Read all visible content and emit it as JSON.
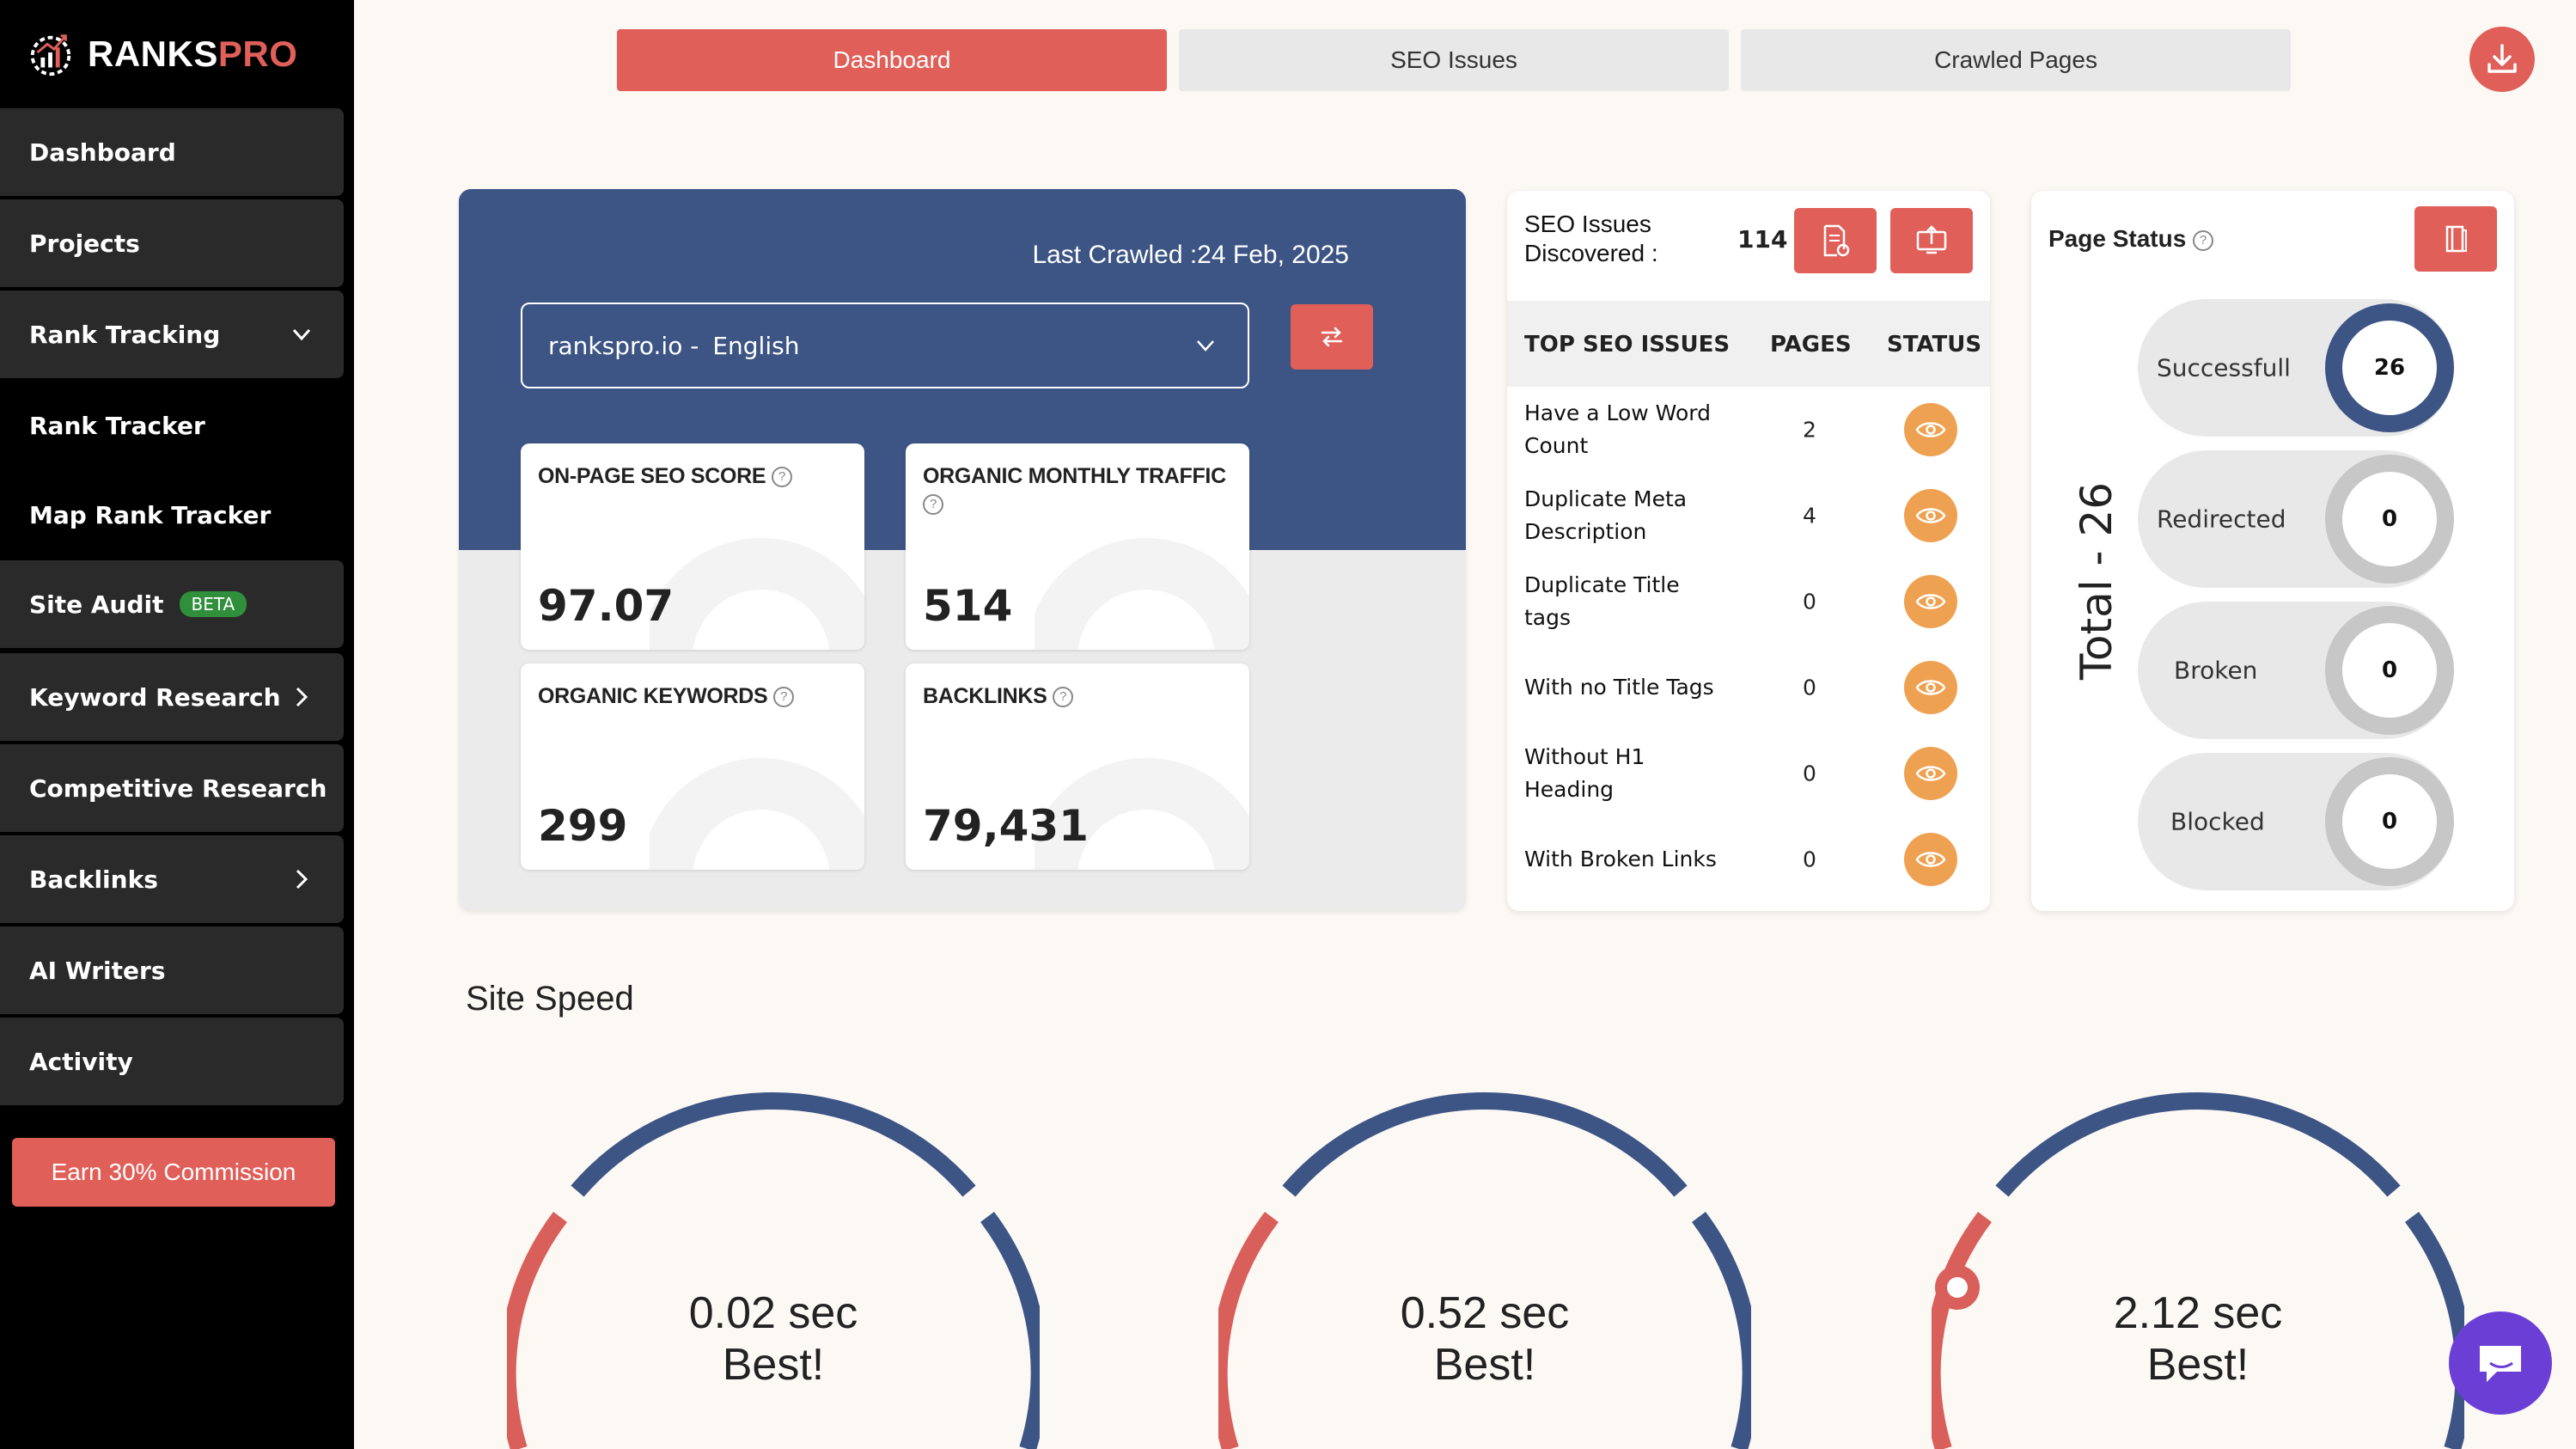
{
  "brand": {
    "name_part1": "RANKS",
    "name_part2": "PRO"
  },
  "sidebar": {
    "items": [
      {
        "label": "Dashboard"
      },
      {
        "label": "Projects"
      },
      {
        "label": "Rank Tracking"
      },
      {
        "label": "Rank Tracker"
      },
      {
        "label": "Map Rank Tracker"
      },
      {
        "label": "Site Audit",
        "badge": "BETA"
      },
      {
        "label": "Keyword Research"
      },
      {
        "label": "Competitive Research"
      },
      {
        "label": "Backlinks"
      },
      {
        "label": "AI Writers"
      },
      {
        "label": "Activity"
      }
    ],
    "cta": "Earn 30% Commission"
  },
  "tabs": [
    {
      "label": "Dashboard"
    },
    {
      "label": "SEO Issues"
    },
    {
      "label": "Crawled Pages"
    }
  ],
  "overview": {
    "last_crawled": "Last Crawled :24 Feb, 2025",
    "domain": "rankspro.io -",
    "language": "English",
    "metrics": [
      {
        "title": "ON-PAGE SEO SCORE",
        "value": "97.07"
      },
      {
        "title": "ORGANIC MONTHLY TRAFFIC",
        "value": "514"
      },
      {
        "title": "ORGANIC KEYWORDS",
        "value": "299"
      },
      {
        "title": "BACKLINKS",
        "value": "79,431"
      }
    ]
  },
  "seo_issues": {
    "label": "SEO Issues Discovered :",
    "count": "114",
    "columns": [
      "TOP SEO ISSUES",
      "PAGES",
      "STATUS"
    ],
    "rows": [
      {
        "name": "Have a Low Word Count",
        "pages": "2"
      },
      {
        "name": "Duplicate Meta Description",
        "pages": "4"
      },
      {
        "name": "Duplicate Title tags",
        "pages": "0"
      },
      {
        "name": "With no Title Tags",
        "pages": "0"
      },
      {
        "name": "Without H1 Heading",
        "pages": "0"
      },
      {
        "name": "With Broken Links",
        "pages": "0"
      }
    ]
  },
  "page_status": {
    "title": "Page Status",
    "total": "Total - 26",
    "items": [
      {
        "label": "Successfull",
        "value": "26"
      },
      {
        "label": "Redirected",
        "value": "0"
      },
      {
        "label": "Broken",
        "value": "0"
      },
      {
        "label": "Blocked",
        "value": "0"
      }
    ]
  },
  "site_speed": {
    "title": "Site Speed",
    "gauges": [
      {
        "value": "0.02 sec",
        "rating": "Best!"
      },
      {
        "value": "0.52 sec",
        "rating": "Best!"
      },
      {
        "value": "2.12 sec",
        "rating": "Best!"
      }
    ]
  },
  "colors": {
    "accent": "#e05f59",
    "navy": "#3d5585",
    "orange": "#efa152",
    "chat": "#6b3fd6"
  }
}
